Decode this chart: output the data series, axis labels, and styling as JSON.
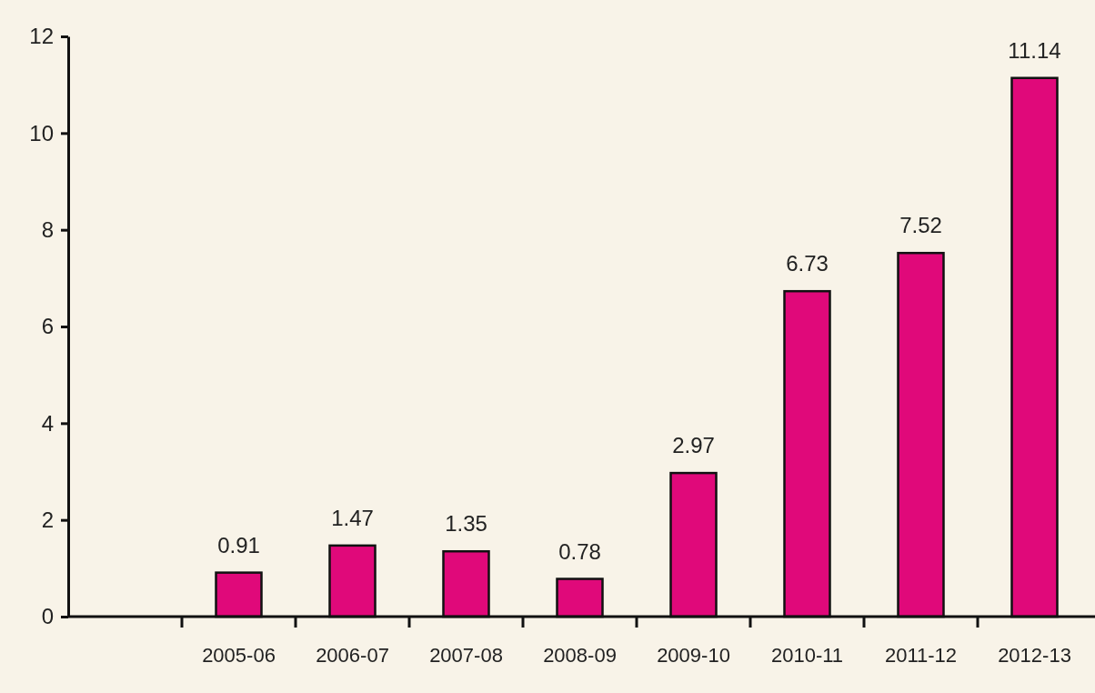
{
  "chart_data": {
    "type": "bar",
    "categories": [
      null,
      "2005-06",
      "2006-07",
      "2007-08",
      "2008-09",
      "2009-10",
      "2010-11",
      "2011-12",
      "2012-13"
    ],
    "values": [
      null,
      0.91,
      1.47,
      1.35,
      0.78,
      2.97,
      6.73,
      7.52,
      11.14
    ],
    "color": "#e0097a",
    "ylim": [
      0,
      12
    ],
    "yticks": [
      0,
      2,
      4,
      6,
      8,
      10,
      12
    ],
    "data_labels": true,
    "grid": false
  }
}
